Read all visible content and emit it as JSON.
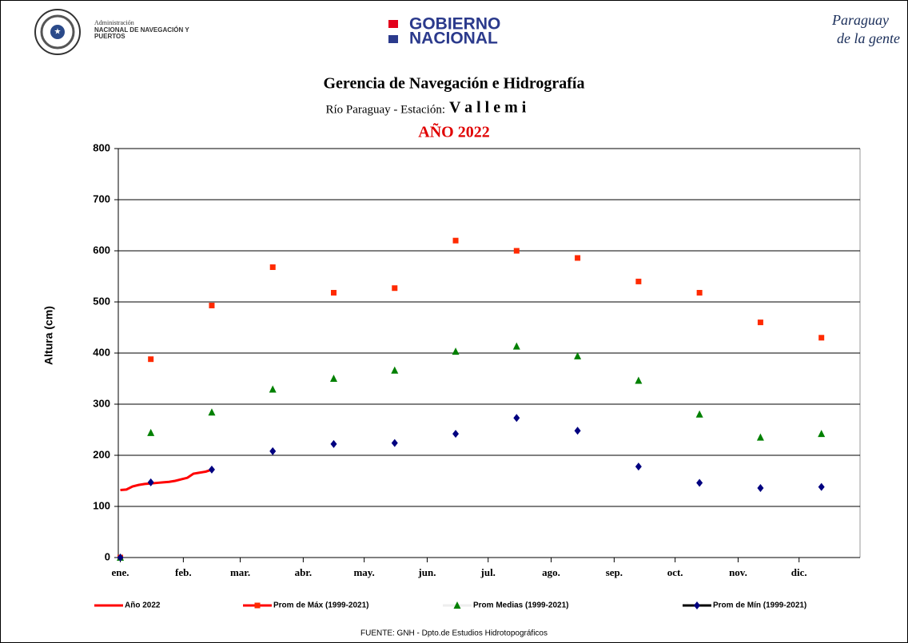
{
  "header": {
    "agency_line1": "Administración",
    "agency_line2": "NACIONAL DE NAVEGACIÓN Y",
    "agency_line3": "PUERTOS",
    "gov_line1": "GOBIERNO",
    "gov_line2": "NACIONAL",
    "slogan_line1": "Paraguay",
    "slogan_line2": "de la gente"
  },
  "chart_data": {
    "type": "line",
    "title": "Gerencia de Navegación e Hidrografía",
    "subtitle": "Río Paraguay  -  Estación:",
    "station": "V a l l e m i",
    "year_label": "AÑO 2022",
    "y_label": "Altura (cm)",
    "source": "FUENTE: GNH - Dpto.de Estudios Hidrotopográficos",
    "xlim": [
      0,
      365
    ],
    "xticks": [
      {
        "value": 1,
        "label": "ene."
      },
      {
        "value": 32,
        "label": "feb."
      },
      {
        "value": 60,
        "label": "mar."
      },
      {
        "value": 91,
        "label": "abr."
      },
      {
        "value": 121,
        "label": "may."
      },
      {
        "value": 152,
        "label": "jun."
      },
      {
        "value": 182,
        "label": "jul."
      },
      {
        "value": 213,
        "label": "ago."
      },
      {
        "value": 244,
        "label": "sep."
      },
      {
        "value": 274,
        "label": "oct."
      },
      {
        "value": 305,
        "label": "nov."
      },
      {
        "value": 335,
        "label": "dic."
      }
    ],
    "ylim": [
      0,
      800
    ],
    "yticks": [
      0,
      100,
      200,
      300,
      400,
      500,
      600,
      700,
      800
    ],
    "grid": true,
    "legend": "bottom",
    "series": [
      {
        "name": "Año 2022",
        "color": "#ff0000",
        "line_color": "#ff0000",
        "marker": "none",
        "x": [
          1,
          4,
          7,
          10,
          13,
          16,
          19,
          22,
          25,
          28,
          31,
          34,
          37,
          40,
          43,
          46
        ],
        "values": [
          132,
          133,
          139,
          142,
          144,
          145,
          146,
          147,
          148,
          150,
          153,
          156,
          164,
          166,
          168,
          172
        ]
      },
      {
        "name": "Prom de Máx (1999-2021)",
        "color": "#ff2a00",
        "line_color": "#ff0000",
        "marker": "square",
        "x": [
          1,
          16,
          46,
          76,
          106,
          136,
          166,
          196,
          226,
          256,
          286,
          316,
          346
        ],
        "values": [
          0,
          388,
          493,
          568,
          518,
          527,
          620,
          600,
          586,
          540,
          518,
          460,
          430
        ]
      },
      {
        "name": "Prom Medias (1999-2021)",
        "color": "#008000",
        "line_color": "#eeeeee",
        "marker": "triangle",
        "x": [
          1,
          16,
          46,
          76,
          106,
          136,
          166,
          196,
          226,
          256,
          286,
          316,
          346
        ],
        "values": [
          0,
          244,
          284,
          329,
          350,
          366,
          403,
          413,
          394,
          346,
          280,
          235,
          242
        ]
      },
      {
        "name": "Prom de Mín  (1999-2021)",
        "color": "#000080",
        "line_color": "#000000",
        "marker": "diamond",
        "x": [
          1,
          16,
          46,
          76,
          106,
          136,
          166,
          196,
          226,
          256,
          286,
          316,
          346
        ],
        "values": [
          0,
          147,
          172,
          208,
          222,
          224,
          242,
          273,
          248,
          178,
          146,
          136,
          138
        ]
      }
    ]
  }
}
